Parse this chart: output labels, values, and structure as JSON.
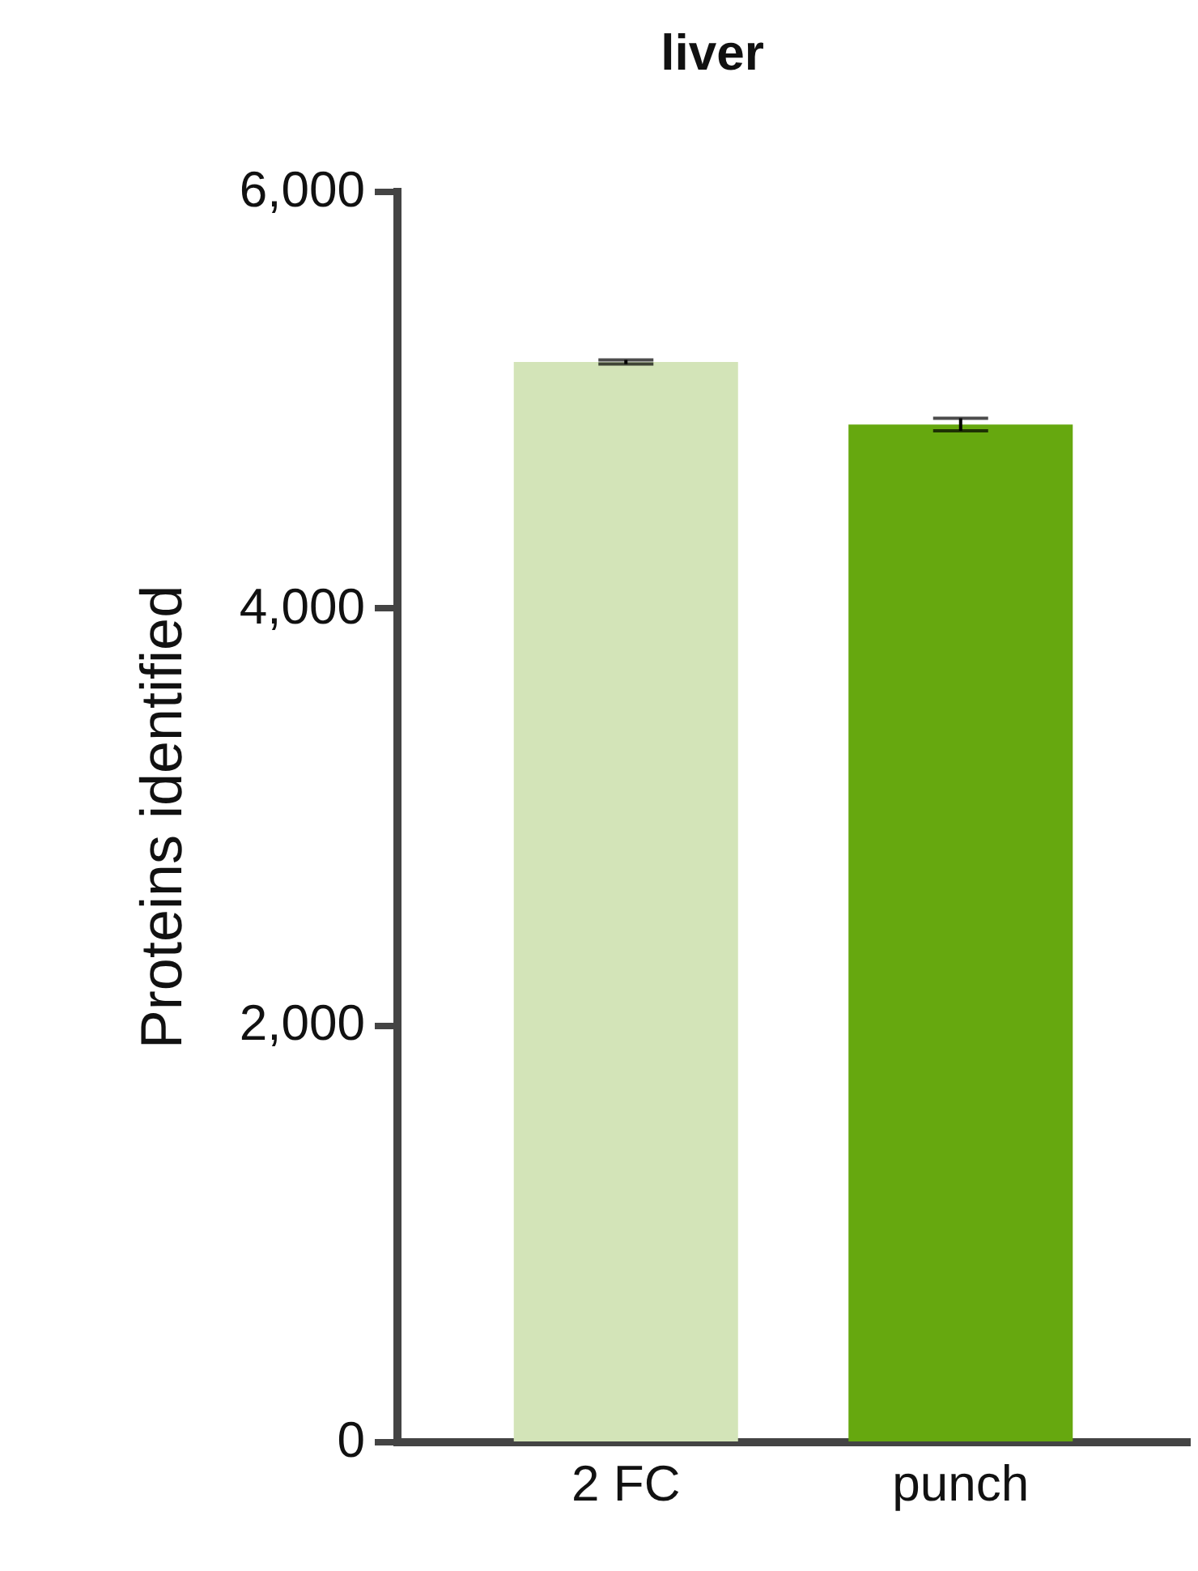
{
  "chart_data": {
    "type": "bar",
    "title": "liver",
    "ylabel": "Proteins identified",
    "categories": [
      "2 FC",
      "punch"
    ],
    "values": [
      5180,
      4880
    ],
    "colors": [
      "#d3e4b8",
      "#66a80f"
    ],
    "errors": [
      10,
      30
    ],
    "ylim": [
      0,
      6000
    ],
    "yticks": [
      {
        "value": 0,
        "label": "0"
      },
      {
        "value": 2000,
        "label": "2,000"
      },
      {
        "value": 4000,
        "label": "4,000"
      },
      {
        "value": 6000,
        "label": "6,000"
      }
    ],
    "grid": false
  }
}
